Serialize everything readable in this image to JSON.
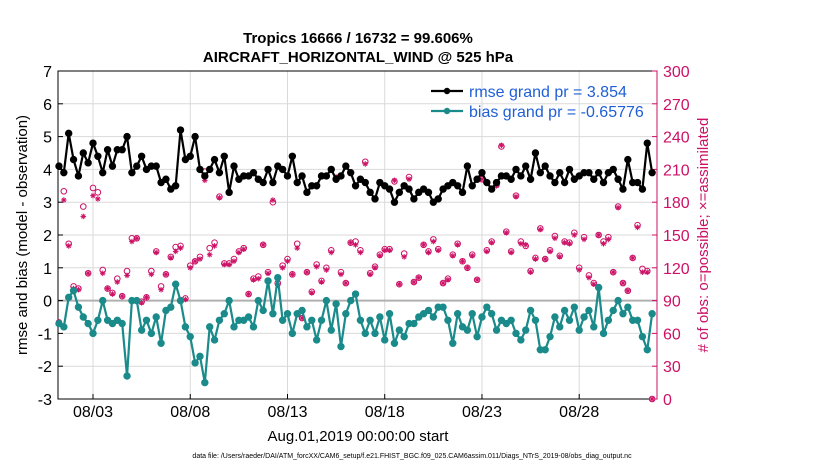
{
  "chart_data": {
    "type": "line",
    "title": "Tropics 16666 / 16732 = 99.606%",
    "subtitle": "AIRCRAFT_HORIZONTAL_WIND @ 525 hPa",
    "xlabel": "Aug.01,2019 00:00:00 start",
    "ylabel": "rmse and bias (model - observation)",
    "y2label": "# of obs: o=possible; ×=assimilated",
    "footnote": "data file: /Users/raeder/DAI/ATM_forcXX/CAM6_setup/f.e21.FHIST_BGC.f09_025.CAM6assim.011/Diags_NTrS_2019-08/obs_diag_output.nc",
    "xlim": [
      1.2,
      32.0
    ],
    "ylim": [
      -3,
      7
    ],
    "y2lim": [
      0,
      300
    ],
    "grid": true,
    "legend_position": "top-right",
    "x_ticks": [
      3,
      8,
      13,
      18,
      23,
      28
    ],
    "x_tick_labels": [
      "08/03",
      "08/08",
      "08/13",
      "08/18",
      "08/23",
      "08/28"
    ],
    "y_ticks": [
      -3,
      -2,
      -1,
      0,
      1,
      2,
      3,
      4,
      5,
      6,
      7
    ],
    "y_tick_labels": [
      "-3",
      "-2",
      "-1",
      "0",
      "1",
      "2",
      "3",
      "4",
      "5",
      "6",
      "7"
    ],
    "y2_ticks": [
      0,
      30,
      60,
      90,
      120,
      150,
      180,
      210,
      240,
      270,
      300
    ],
    "y2_tick_labels": [
      "0",
      "30",
      "60",
      "90",
      "120",
      "150",
      "180",
      "210",
      "240",
      "270",
      "300"
    ],
    "colors": {
      "rmse": "#000000",
      "bias": "#1a8a8a",
      "obs": "#cc1166",
      "zero_line": "#b0b0b0",
      "legend_text": "#1f5fd6",
      "grid": "#d9d9d9"
    },
    "series": [
      {
        "name": "rmse grand pr = 3.854",
        "axis": "left",
        "x": [
          1.25,
          1.5,
          1.75,
          2,
          2.25,
          2.5,
          2.75,
          3,
          3.25,
          3.5,
          3.75,
          4,
          4.25,
          4.5,
          4.75,
          5,
          5.25,
          5.5,
          5.75,
          6,
          6.25,
          6.5,
          6.75,
          7,
          7.25,
          7.5,
          7.75,
          8,
          8.25,
          8.5,
          8.75,
          9,
          9.25,
          9.5,
          9.75,
          10,
          10.25,
          10.5,
          10.75,
          11,
          11.25,
          11.5,
          11.75,
          12,
          12.25,
          12.5,
          12.75,
          13,
          13.25,
          13.5,
          13.75,
          14,
          14.25,
          14.5,
          14.75,
          15,
          15.25,
          15.5,
          15.75,
          16,
          16.25,
          16.5,
          16.75,
          17,
          17.25,
          17.5,
          17.75,
          18,
          18.25,
          18.5,
          18.75,
          19,
          19.25,
          19.5,
          19.75,
          20,
          20.25,
          20.5,
          20.75,
          21,
          21.25,
          21.5,
          21.75,
          22,
          22.25,
          22.5,
          22.75,
          23,
          23.25,
          23.5,
          23.75,
          24,
          24.25,
          24.5,
          24.75,
          25,
          25.25,
          25.5,
          25.75,
          26,
          26.25,
          26.5,
          26.75,
          27,
          27.25,
          27.5,
          27.75,
          28,
          28.25,
          28.5,
          28.75,
          29,
          29.25,
          29.5,
          29.75,
          30,
          30.25,
          30.5,
          30.75,
          31,
          31.25,
          31.5,
          31.75
        ],
        "values": [
          4.1,
          3.9,
          5.1,
          4.3,
          3.8,
          4.5,
          4.2,
          4.8,
          4.4,
          3.9,
          4.6,
          4.1,
          4.6,
          4.6,
          5.0,
          3.9,
          4.1,
          4.4,
          4.0,
          4.1,
          4.1,
          3.6,
          3.7,
          3.4,
          3.5,
          5.2,
          4.3,
          4.4,
          5.0,
          4.0,
          3.8,
          4.0,
          4.3,
          3.9,
          4.4,
          3.3,
          4.1,
          3.7,
          3.8,
          3.8,
          3.9,
          3.7,
          3.6,
          4.0,
          3.6,
          4.1,
          4.0,
          3.8,
          4.4,
          3.6,
          3.8,
          3.3,
          3.5,
          3.5,
          3.8,
          3.8,
          4.0,
          3.7,
          3.8,
          4.1,
          3.9,
          3.5,
          3.7,
          3.6,
          3.3,
          3.1,
          3.6,
          3.5,
          3.4,
          3.0,
          3.3,
          3.5,
          3.4,
          3.1,
          3.3,
          3.4,
          3.3,
          3.0,
          3.1,
          3.4,
          3.5,
          3.6,
          3.5,
          3.3,
          4.1,
          3.5,
          3.7,
          3.9,
          3.6,
          3.4,
          3.6,
          3.8,
          3.8,
          3.7,
          4.0,
          3.8,
          4.1,
          3.7,
          4.5,
          3.9,
          4.1,
          3.8,
          3.6,
          3.9,
          3.6,
          4.0,
          3.7,
          3.8,
          3.9,
          3.9,
          3.7,
          3.9,
          3.6,
          3.9,
          4.0,
          3.7,
          3.4,
          4.3,
          3.6,
          3.6,
          3.4,
          4.8,
          3.9
        ],
        "markers": "filled-circle"
      },
      {
        "name": "bias grand pr = -0.65776",
        "axis": "left",
        "x": [
          1.25,
          1.5,
          1.75,
          2,
          2.25,
          2.5,
          2.75,
          3,
          3.25,
          3.5,
          3.75,
          4,
          4.25,
          4.5,
          4.75,
          5,
          5.25,
          5.5,
          5.75,
          6,
          6.25,
          6.5,
          6.75,
          7,
          7.25,
          7.5,
          7.75,
          8,
          8.25,
          8.5,
          8.75,
          9,
          9.25,
          9.5,
          9.75,
          10,
          10.25,
          10.5,
          10.75,
          11,
          11.25,
          11.5,
          11.75,
          12,
          12.25,
          12.5,
          12.75,
          13,
          13.25,
          13.5,
          13.75,
          14,
          14.25,
          14.5,
          14.75,
          15,
          15.25,
          15.5,
          15.75,
          16,
          16.25,
          16.5,
          16.75,
          17,
          17.25,
          17.5,
          17.75,
          18,
          18.25,
          18.5,
          18.75,
          19,
          19.25,
          19.5,
          19.75,
          20,
          20.25,
          20.5,
          20.75,
          21,
          21.25,
          21.5,
          21.75,
          22,
          22.25,
          22.5,
          22.75,
          23,
          23.25,
          23.5,
          23.75,
          24,
          24.25,
          24.5,
          24.75,
          25,
          25.25,
          25.5,
          25.75,
          26,
          26.25,
          26.5,
          26.75,
          27,
          27.25,
          27.5,
          27.75,
          28,
          28.25,
          28.5,
          28.75,
          29,
          29.25,
          29.5,
          29.75,
          30,
          30.25,
          30.5,
          30.75,
          31,
          31.25,
          31.5,
          31.75
        ],
        "values": [
          -0.7,
          -0.8,
          0.1,
          0.3,
          -0.2,
          -0.5,
          -0.7,
          -1.0,
          -0.6,
          0.0,
          -0.6,
          -0.7,
          -0.6,
          -0.7,
          -2.3,
          0.0,
          0.0,
          -0.9,
          -0.6,
          -1.0,
          -0.5,
          -1.3,
          -0.3,
          -0.2,
          0.5,
          0.0,
          -0.8,
          -1.1,
          -1.9,
          -1.7,
          -2.5,
          -0.8,
          -1.2,
          -0.6,
          -0.4,
          0.0,
          -0.8,
          -0.6,
          -0.6,
          -0.5,
          -0.8,
          0.0,
          -0.3,
          0.6,
          -0.4,
          0.7,
          -0.6,
          -0.4,
          -1.0,
          -0.4,
          -0.3,
          -0.8,
          -0.6,
          -1.2,
          -0.6,
          0.0,
          -0.9,
          -0.1,
          -1.4,
          -0.4,
          0.0,
          0.2,
          -0.6,
          -1.0,
          -0.6,
          -1.0,
          -0.5,
          -1.2,
          -0.4,
          -1.3,
          -0.9,
          -1.1,
          -0.7,
          -0.7,
          -0.5,
          -0.4,
          -0.3,
          -0.5,
          -0.2,
          -0.2,
          -0.6,
          -1.3,
          -0.4,
          -0.8,
          -0.9,
          -0.4,
          -1.1,
          -0.5,
          -0.2,
          -0.4,
          -0.9,
          -0.6,
          -0.7,
          -0.6,
          -1.0,
          -1.2,
          -0.9,
          -0.3,
          -0.6,
          -1.5,
          -1.5,
          -1.1,
          -0.5,
          -0.8,
          -0.3,
          -0.6,
          -0.2,
          -0.9,
          -0.5,
          -0.3,
          -0.8,
          0.4,
          -1.0,
          -0.6,
          -0.3,
          0.0,
          -0.4,
          -0.2,
          -0.6,
          -0.6,
          -1.1,
          -1.5,
          -0.4
        ],
        "markers": "filled-circle"
      },
      {
        "name": "obs possible",
        "axis": "right",
        "x": [
          1.25,
          1.5,
          1.75,
          2,
          2.25,
          2.5,
          2.75,
          3,
          3.25,
          3.5,
          3.75,
          4,
          4.25,
          4.5,
          4.75,
          5,
          5.25,
          5.5,
          5.75,
          6,
          6.25,
          6.5,
          6.75,
          7,
          7.25,
          7.5,
          7.75,
          8,
          8.25,
          8.5,
          8.75,
          9,
          9.25,
          9.5,
          9.75,
          10,
          10.25,
          10.5,
          10.75,
          11,
          11.25,
          11.5,
          11.75,
          12,
          12.25,
          12.5,
          12.75,
          13,
          13.25,
          13.5,
          13.75,
          14,
          14.25,
          14.5,
          14.75,
          15,
          15.25,
          15.5,
          15.75,
          16,
          16.25,
          16.5,
          16.75,
          17,
          17.25,
          17.5,
          17.75,
          18,
          18.25,
          18.5,
          18.75,
          19,
          19.25,
          19.5,
          19.75,
          20,
          20.25,
          20.5,
          20.75,
          21,
          21.25,
          21.5,
          21.75,
          22,
          22.25,
          22.5,
          22.75,
          23,
          23.25,
          23.5,
          23.75,
          24,
          24.25,
          24.5,
          24.75,
          25,
          25.25,
          25.5,
          25.75,
          26,
          26.25,
          26.5,
          26.75,
          27,
          27.25,
          27.5,
          27.75,
          28,
          28.25,
          28.5,
          28.75,
          29,
          29.25,
          29.5,
          29.75,
          30,
          30.25,
          30.5,
          30.75,
          31,
          31.25,
          31.5,
          31.75
        ],
        "values": [
          70,
          190,
          142,
          103,
          101,
          176,
          115,
          193,
          189,
          118,
          101,
          97,
          110,
          94,
          117,
          147,
          147,
          89,
          93,
          117,
          135,
          103,
          114,
          130,
          139,
          140,
          92,
          122,
          126,
          130,
          208,
          138,
          143,
          185,
          124,
          124,
          128,
          135,
          138,
          96,
          110,
          112,
          141,
          116,
          180,
          106,
          122,
          128,
          114,
          142,
          74,
          116,
          98,
          123,
          108,
          120,
          136,
          202,
          116,
          106,
          143,
          144,
          136,
          217,
          115,
          121,
          132,
          137,
          137,
          199,
          105,
          133,
          203,
          107,
          111,
          141,
          135,
          146,
          137,
          106,
          110,
          132,
          142,
          126,
          120,
          132,
          109,
          201,
          136,
          144,
          196,
          231,
          153,
          135,
          186,
          144,
          140,
          117,
          129,
          156,
          128,
          136,
          149,
          131,
          144,
          143,
          152,
          120,
          148,
          113,
          106,
          150,
          144,
          148,
          116,
          176,
          106,
          99,
          129,
          159,
          119,
          117,
          0
        ],
        "markers": "open-circle"
      },
      {
        "name": "obs assimilated",
        "axis": "right",
        "x": [
          1.25,
          1.5,
          1.75,
          2,
          2.25,
          2.5,
          2.75,
          3,
          3.25,
          3.5,
          3.75,
          4,
          4.25,
          4.5,
          4.75,
          5,
          5.25,
          5.5,
          5.75,
          6,
          6.25,
          6.5,
          6.75,
          7,
          7.25,
          7.5,
          7.75,
          8,
          8.25,
          8.5,
          8.75,
          9,
          9.25,
          9.5,
          9.75,
          10,
          10.25,
          10.5,
          10.75,
          11,
          11.25,
          11.5,
          11.75,
          12,
          12.25,
          12.5,
          12.75,
          13,
          13.25,
          13.5,
          13.75,
          14,
          14.25,
          14.5,
          14.75,
          15,
          15.25,
          15.5,
          15.75,
          16,
          16.25,
          16.5,
          16.75,
          17,
          17.25,
          17.5,
          17.75,
          18,
          18.25,
          18.5,
          18.75,
          19,
          19.25,
          19.5,
          19.75,
          20,
          20.25,
          20.5,
          20.75,
          21,
          21.25,
          21.5,
          21.75,
          22,
          22.25,
          22.5,
          22.75,
          23,
          23.25,
          23.5,
          23.75,
          24,
          24.25,
          24.5,
          24.75,
          25,
          25.25,
          25.5,
          25.75,
          26,
          26.25,
          26.5,
          26.75,
          27,
          27.25,
          27.5,
          27.75,
          28,
          28.25,
          28.5,
          28.75,
          29,
          29.25,
          29.5,
          29.75,
          30,
          30.25,
          30.5,
          30.75,
          31,
          31.25,
          31.5,
          31.75
        ],
        "values": [
          69,
          182,
          140,
          101,
          100,
          167,
          115,
          186,
          183,
          115,
          101,
          96,
          107,
          94,
          113,
          144,
          147,
          88,
          93,
          114,
          134,
          100,
          114,
          129,
          135,
          138,
          91,
          120,
          126,
          128,
          200,
          132,
          140,
          184,
          123,
          123,
          126,
          134,
          137,
          96,
          109,
          110,
          141,
          115,
          182,
          104,
          120,
          126,
          114,
          138,
          74,
          116,
          97,
          121,
          107,
          118,
          134,
          203,
          114,
          106,
          143,
          141,
          134,
          215,
          114,
          120,
          131,
          136,
          136,
          200,
          105,
          130,
          201,
          107,
          111,
          141,
          134,
          144,
          136,
          106,
          109,
          131,
          141,
          126,
          120,
          131,
          109,
          201,
          135,
          143,
          195,
          232,
          152,
          134,
          185,
          142,
          141,
          116,
          128,
          155,
          128,
          135,
          147,
          130,
          143,
          142,
          150,
          118,
          146,
          111,
          105,
          150,
          142,
          146,
          116,
          175,
          106,
          99,
          129,
          157,
          116,
          116,
          0
        ],
        "markers": "asterisk"
      }
    ]
  }
}
